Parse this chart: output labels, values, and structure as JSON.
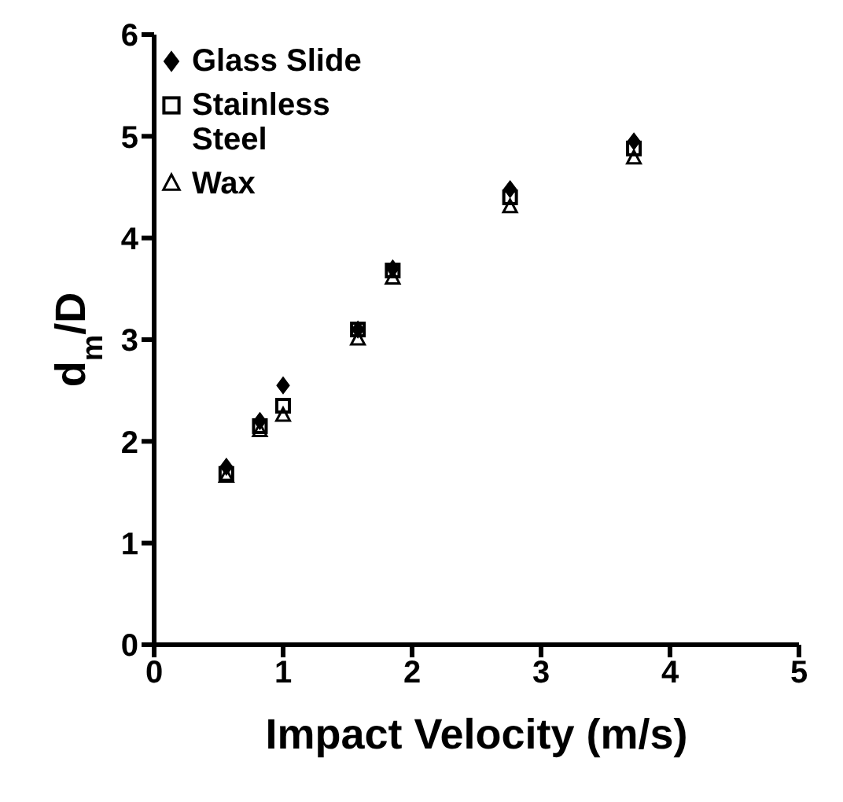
{
  "chart_data": {
    "type": "scatter",
    "xlabel": "Impact Velocity (m/s)",
    "ylabel": "d$_{m}$/D",
    "x": [
      0.56,
      0.82,
      1.0,
      1.58,
      1.85,
      2.76,
      3.72
    ],
    "xlim": [
      0,
      5
    ],
    "xticks": [
      0,
      1,
      2,
      3,
      4,
      5
    ],
    "ylim": [
      0,
      6
    ],
    "yticks": [
      0,
      1,
      2,
      3,
      4,
      5,
      6
    ],
    "grid": false,
    "legend": "top left",
    "series": [
      {
        "name": "Glass Slide",
        "color": "#000000",
        "marker": "diamond",
        "values": [
          1.75,
          2.2,
          2.55,
          3.1,
          3.7,
          4.48,
          4.95
        ]
      },
      {
        "name": "Stainless Steel",
        "color": "#000000",
        "marker": "square",
        "values": [
          1.68,
          2.15,
          2.35,
          3.1,
          3.68,
          4.4,
          4.88
        ]
      },
      {
        "name": "Wax",
        "color": "#000000",
        "marker": "triangle",
        "values": [
          1.65,
          2.1,
          2.25,
          3.0,
          3.6,
          4.3,
          4.78
        ]
      }
    ]
  }
}
